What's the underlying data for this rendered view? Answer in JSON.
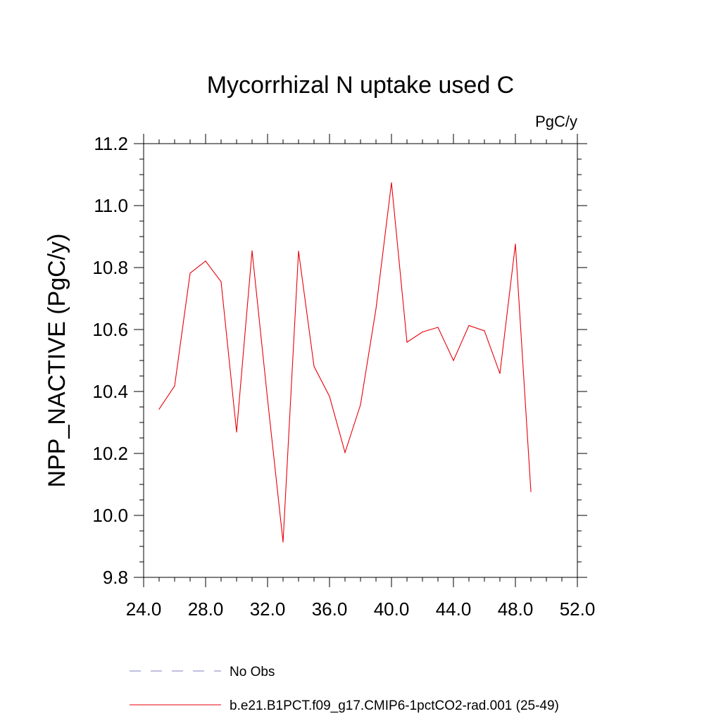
{
  "chart_data": {
    "type": "line",
    "title": "Mycorrhizal N uptake used C",
    "units_label": "PgC/y",
    "ylabel": "NPP_NACTIVE  (PgC/y)",
    "xlabel": "",
    "xlim": [
      24.0,
      52.0
    ],
    "ylim": [
      9.8,
      11.2
    ],
    "x_ticks": [
      "24.0",
      "28.0",
      "32.0",
      "36.0",
      "40.0",
      "44.0",
      "48.0",
      "52.0"
    ],
    "y_ticks": [
      "9.8",
      "10.0",
      "10.2",
      "10.4",
      "10.6",
      "10.8",
      "11.0",
      "11.2"
    ],
    "grid": false,
    "series": [
      {
        "name": "b.e21.B1PCT.f09_g17.CMIP6-1pctCO2-rad.001 (25-49)",
        "color": "#e8000b",
        "x": [
          25,
          26,
          27,
          28,
          29,
          30,
          31,
          32,
          33,
          34,
          35,
          36,
          37,
          38,
          39,
          40,
          41,
          42,
          43,
          44,
          45,
          46,
          47,
          48,
          49
        ],
        "y": [
          10.343,
          10.418,
          10.782,
          10.821,
          10.754,
          10.269,
          10.854,
          10.375,
          9.914,
          10.853,
          10.481,
          10.384,
          10.203,
          10.357,
          10.667,
          11.074,
          10.559,
          10.592,
          10.607,
          10.5,
          10.613,
          10.596,
          10.458,
          10.876,
          10.077
        ]
      }
    ],
    "legend": {
      "placement": "bottom-left",
      "entries": [
        {
          "label": "No Obs",
          "color": "#8080c0",
          "style": "dashed"
        },
        {
          "label": "b.e21.B1PCT.f09_g17.CMIP6-1pctCO2-rad.001 (25-49)",
          "color": "#e8000b",
          "style": "solid"
        }
      ]
    }
  }
}
